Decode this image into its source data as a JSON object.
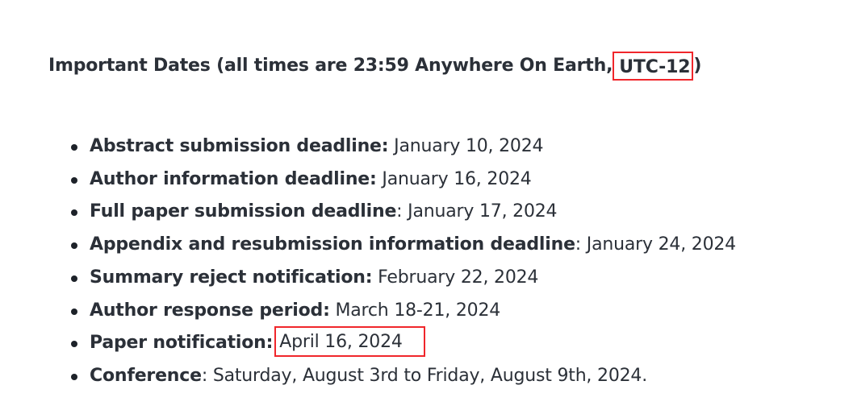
{
  "heading": {
    "prefix": "Important Dates (all times are 23:59 Anywhere On Earth,",
    "timezone": "UTC-12",
    "suffix": ")"
  },
  "dates": [
    {
      "label": "Abstract submission deadline:",
      "sep": "",
      "value": " January 10, 2024"
    },
    {
      "label": "Author information deadline:",
      "sep": "",
      "value": " January 16, 2024"
    },
    {
      "label": "Full paper submission deadline",
      "sep": ":",
      "value": " January 17, 2024"
    },
    {
      "label": "Appendix and resubmission information deadline",
      "sep": ":",
      "value": " January 24, 2024"
    },
    {
      "label": "Summary reject notification:",
      "sep": "",
      "value": " February 22, 2024"
    },
    {
      "label": "Author response period:",
      "sep": "",
      "value": " March 18-21, 2024"
    },
    {
      "label": "Paper notification:",
      "sep": "",
      "value": "April 16, 2024"
    },
    {
      "label": "Conference",
      "sep": ":",
      "value": " Saturday, August 3rd to Friday, August 9th, 2024."
    }
  ],
  "colors": {
    "text": "#2b3038",
    "highlight_border": "#f0262b",
    "bullet": "#1d2229"
  }
}
